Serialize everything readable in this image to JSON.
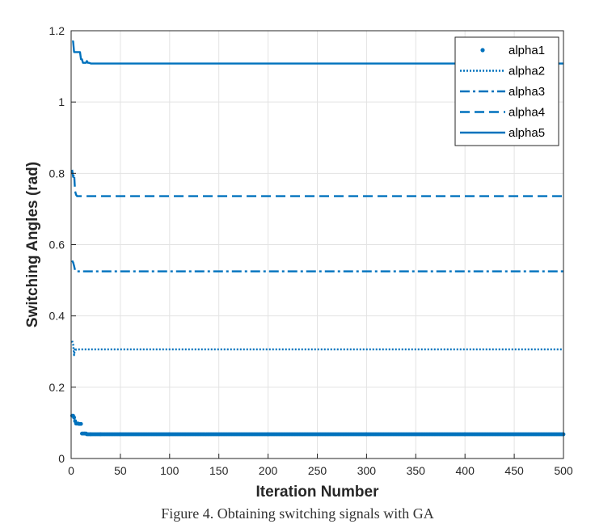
{
  "caption": "Figure 4. Obtaining switching signals with GA",
  "chart_data": {
    "type": "line",
    "xlabel": "Iteration Number",
    "ylabel": "Switching Angles (rad)",
    "xlim": [
      0,
      500
    ],
    "ylim": [
      0,
      1.2
    ],
    "xticks": [
      "0",
      "50",
      "100",
      "150",
      "200",
      "250",
      "300",
      "350",
      "400",
      "450",
      "500"
    ],
    "yticks": [
      "0",
      "0.2",
      "0.4",
      "0.6",
      "0.8",
      "1",
      "1.2"
    ],
    "grid": true,
    "legend_position": "top-right",
    "color": "#0072BD",
    "series": [
      {
        "name": "alpha1",
        "style": "dots",
        "x": [
          1,
          2,
          3,
          4,
          5,
          6,
          7,
          8,
          9,
          10,
          11,
          12,
          14,
          16,
          20,
          30,
          50,
          100,
          200,
          300,
          400,
          500
        ],
        "y": [
          0.12,
          0.12,
          0.115,
          0.105,
          0.098,
          0.098,
          0.098,
          0.097,
          0.097,
          0.097,
          0.07,
          0.07,
          0.07,
          0.068,
          0.068,
          0.068,
          0.068,
          0.068,
          0.068,
          0.068,
          0.068,
          0.068
        ]
      },
      {
        "name": "alpha2",
        "style": "dotted",
        "x": [
          1,
          2,
          3,
          4,
          5,
          6,
          8,
          10,
          50,
          100,
          200,
          300,
          400,
          500
        ],
        "y": [
          0.33,
          0.32,
          0.29,
          0.31,
          0.305,
          0.305,
          0.306,
          0.306,
          0.306,
          0.306,
          0.306,
          0.306,
          0.306,
          0.306
        ]
      },
      {
        "name": "alpha3",
        "style": "dashdot",
        "x": [
          1,
          2,
          3,
          4,
          5,
          6,
          7,
          8,
          10,
          50,
          100,
          200,
          300,
          400,
          500
        ],
        "y": [
          0.555,
          0.55,
          0.54,
          0.528,
          0.525,
          0.525,
          0.525,
          0.525,
          0.525,
          0.525,
          0.525,
          0.525,
          0.525,
          0.525,
          0.525
        ]
      },
      {
        "name": "alpha4",
        "style": "dashed",
        "x": [
          1,
          2,
          3,
          4,
          5,
          6,
          8,
          10,
          50,
          100,
          200,
          300,
          400,
          500
        ],
        "y": [
          0.81,
          0.79,
          0.8,
          0.75,
          0.74,
          0.736,
          0.736,
          0.736,
          0.736,
          0.736,
          0.736,
          0.736,
          0.736,
          0.736
        ]
      },
      {
        "name": "alpha5",
        "style": "solid",
        "x": [
          1,
          2,
          3,
          4,
          5,
          6,
          7,
          8,
          9,
          10,
          11,
          12,
          13,
          14,
          15,
          16,
          17,
          18,
          20,
          30,
          50,
          100,
          200,
          300,
          400,
          500
        ],
        "y": [
          1.17,
          1.17,
          1.14,
          1.14,
          1.14,
          1.14,
          1.14,
          1.14,
          1.14,
          1.12,
          1.12,
          1.11,
          1.11,
          1.11,
          1.11,
          1.115,
          1.11,
          1.11,
          1.108,
          1.108,
          1.108,
          1.108,
          1.108,
          1.108,
          1.108,
          1.108
        ]
      }
    ]
  }
}
